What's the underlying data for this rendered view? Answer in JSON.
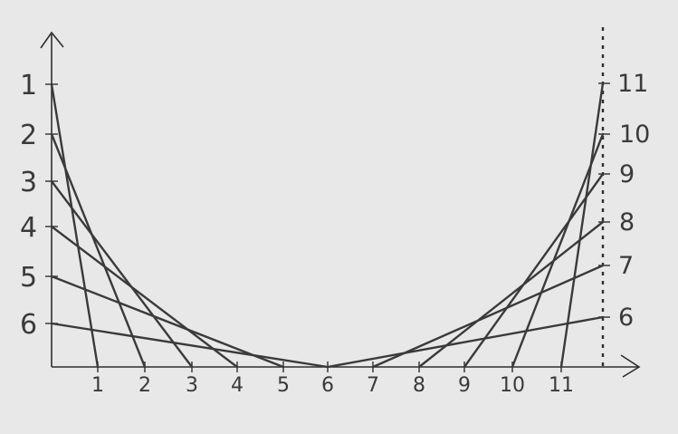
{
  "style": {
    "background": "#e8e8e8",
    "ink": "#2e2e2e",
    "line": "#3a3a3a"
  },
  "left_axis_labels": [
    "1",
    "2",
    "3",
    "4",
    "5",
    "6"
  ],
  "right_axis_labels": [
    "11",
    "10",
    "9",
    "8",
    "7",
    "6"
  ],
  "bottom_axis_labels": [
    "1",
    "2",
    "3",
    "4",
    "5",
    "6",
    "7",
    "8",
    "9",
    "10",
    "11"
  ],
  "left_lines": [
    {
      "from_left": "1",
      "to_bottom": "1"
    },
    {
      "from_left": "2",
      "to_bottom": "2"
    },
    {
      "from_left": "3",
      "to_bottom": "3"
    },
    {
      "from_left": "4",
      "to_bottom": "4"
    },
    {
      "from_left": "5",
      "to_bottom": "5"
    },
    {
      "from_left": "6",
      "to_bottom": "6"
    }
  ],
  "right_lines": [
    {
      "from_right": "6",
      "to_bottom": "6"
    },
    {
      "from_right": "7",
      "to_bottom": "7"
    },
    {
      "from_right": "8",
      "to_bottom": "8"
    },
    {
      "from_right": "9",
      "to_bottom": "9"
    },
    {
      "from_right": "10",
      "to_bottom": "10"
    },
    {
      "from_right": "11",
      "to_bottom": "11"
    }
  ]
}
